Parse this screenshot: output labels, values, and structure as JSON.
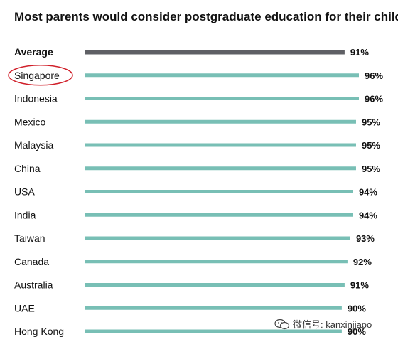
{
  "chart_data": {
    "type": "bar",
    "orientation": "horizontal",
    "title": "Most parents would consider postgraduate education for their child",
    "categories": [
      "Average",
      "Singapore",
      "Indonesia",
      "Mexico",
      "Malaysia",
      "China",
      "USA",
      "India",
      "Taiwan",
      "Canada",
      "Australia",
      "UAE",
      "Hong Kong"
    ],
    "values": [
      91,
      96,
      96,
      95,
      95,
      95,
      94,
      94,
      93,
      92,
      91,
      90,
      90
    ],
    "value_labels": [
      "91%",
      "96%",
      "96%",
      "95%",
      "95%",
      "95%",
      "94%",
      "94%",
      "93%",
      "92%",
      "91%",
      "90%",
      "90%"
    ],
    "unit": "%",
    "highlighted": [
      "Average"
    ],
    "circled": [
      "Singapore"
    ],
    "colors": {
      "average": "#5f6065",
      "bars": "#78bfb5",
      "circle": "#d0202a"
    },
    "xlim": [
      0,
      96
    ],
    "grid": false,
    "legend": "none"
  },
  "watermark": {
    "text": "微信号: kanxinjiapo",
    "icon": "wechat-icon"
  }
}
